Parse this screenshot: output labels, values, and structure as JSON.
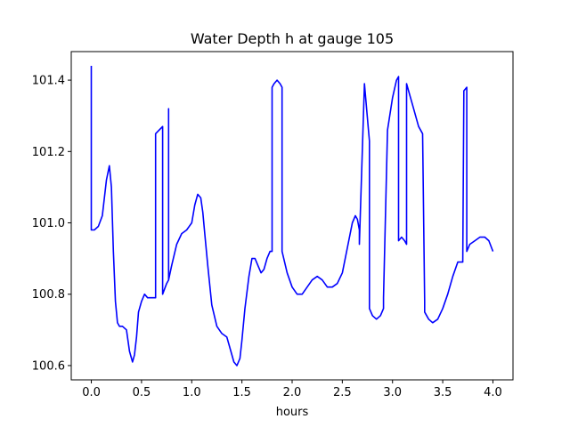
{
  "chart_data": {
    "type": "line",
    "title": "Water Depth h at gauge 105",
    "xlabel": "hours",
    "ylabel": "",
    "xlim": [
      -0.2,
      4.2
    ],
    "ylim": [
      100.56,
      101.48
    ],
    "grid": false,
    "xticks": [
      0.0,
      0.5,
      1.0,
      1.5,
      2.0,
      2.5,
      3.0,
      3.5,
      4.0
    ],
    "xtick_labels": [
      "0.0",
      "0.5",
      "1.0",
      "1.5",
      "2.0",
      "2.5",
      "3.0",
      "3.5",
      "4.0"
    ],
    "yticks": [
      100.6,
      100.8,
      101.0,
      101.2,
      101.4
    ],
    "ytick_labels": [
      "100.6",
      "100.8",
      "101.0",
      "101.2",
      "101.4"
    ],
    "series": [
      {
        "color": "#0000ff",
        "x": [
          0.0,
          0.0,
          0.03,
          0.07,
          0.11,
          0.15,
          0.18,
          0.2,
          0.22,
          0.24,
          0.26,
          0.28,
          0.31,
          0.35,
          0.38,
          0.41,
          0.43,
          0.45,
          0.47,
          0.5,
          0.53,
          0.56,
          0.6,
          0.64,
          0.64,
          0.71,
          0.71,
          0.71,
          0.75,
          0.77,
          0.77,
          0.77,
          0.8,
          0.85,
          0.9,
          0.95,
          1.0,
          1.03,
          1.06,
          1.09,
          1.11,
          1.13,
          1.16,
          1.2,
          1.25,
          1.3,
          1.35,
          1.38,
          1.42,
          1.45,
          1.48,
          1.5,
          1.53,
          1.57,
          1.6,
          1.63,
          1.66,
          1.69,
          1.72,
          1.75,
          1.78,
          1.8,
          1.8,
          1.82,
          1.85,
          1.88,
          1.9,
          1.9,
          1.95,
          2.0,
          2.05,
          2.1,
          2.15,
          2.2,
          2.25,
          2.3,
          2.35,
          2.4,
          2.45,
          2.5,
          2.55,
          2.6,
          2.63,
          2.65,
          2.67,
          2.67,
          2.72,
          2.76,
          2.77,
          2.77,
          2.8,
          2.84,
          2.88,
          2.91,
          2.91,
          2.95,
          3.0,
          3.04,
          3.06,
          3.06,
          3.09,
          3.12,
          3.14,
          3.14,
          3.2,
          3.26,
          3.3,
          3.32,
          3.32,
          3.36,
          3.4,
          3.45,
          3.5,
          3.55,
          3.6,
          3.65,
          3.7,
          3.71,
          3.71,
          3.74,
          3.74,
          3.77,
          3.82,
          3.87,
          3.92,
          3.96,
          4.0
        ],
        "y": [
          101.44,
          100.98,
          100.98,
          100.99,
          101.02,
          101.12,
          101.16,
          101.1,
          100.92,
          100.78,
          100.72,
          100.71,
          100.71,
          100.7,
          100.64,
          100.61,
          100.63,
          100.68,
          100.75,
          100.78,
          100.8,
          100.79,
          100.79,
          100.79,
          101.25,
          101.27,
          101.26,
          100.8,
          100.83,
          100.84,
          101.32,
          100.84,
          100.88,
          100.94,
          100.97,
          100.98,
          101.0,
          101.05,
          101.08,
          101.07,
          101.03,
          100.97,
          100.88,
          100.77,
          100.71,
          100.69,
          100.68,
          100.65,
          100.61,
          100.6,
          100.62,
          100.67,
          100.76,
          100.85,
          100.9,
          100.9,
          100.88,
          100.86,
          100.87,
          100.9,
          100.92,
          100.92,
          101.38,
          101.39,
          101.4,
          101.39,
          101.38,
          100.92,
          100.86,
          100.82,
          100.8,
          100.8,
          100.82,
          100.84,
          100.85,
          100.84,
          100.82,
          100.82,
          100.83,
          100.86,
          100.93,
          101.0,
          101.02,
          101.01,
          100.98,
          100.94,
          101.39,
          101.26,
          101.23,
          100.76,
          100.74,
          100.73,
          100.74,
          100.76,
          100.79,
          101.26,
          101.35,
          101.4,
          101.41,
          100.95,
          100.96,
          100.95,
          100.94,
          101.39,
          101.33,
          101.27,
          101.25,
          100.78,
          100.75,
          100.73,
          100.72,
          100.73,
          100.76,
          100.8,
          100.85,
          100.89,
          100.89,
          101.36,
          101.37,
          101.38,
          100.92,
          100.94,
          100.95,
          100.96,
          100.96,
          100.95,
          100.92
        ]
      }
    ]
  }
}
